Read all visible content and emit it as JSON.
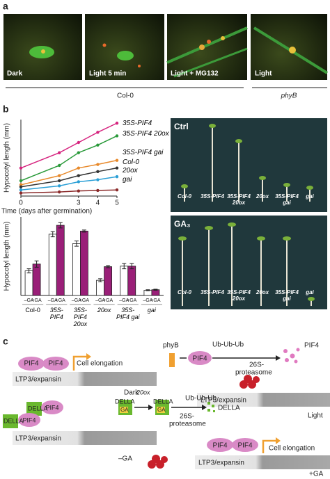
{
  "panel_a": {
    "label": "a",
    "images": [
      "Dark",
      "Light 5 min",
      "Light + MG132",
      "Light"
    ],
    "groups": [
      "Col-0",
      "phyB"
    ]
  },
  "panel_b": {
    "label": "b",
    "photos": [
      {
        "condition": "Ctrl",
        "genotypes": [
          "Col-0",
          "35S-PIF4",
          "35S-PIF4 20ox",
          "20ox",
          "35S-PIF4 gai",
          "gai"
        ]
      },
      {
        "condition": "GA₃",
        "genotypes": [
          "Col-0",
          "35S-PIF4",
          "35S-PIF4 20ox",
          "20ox",
          "35S-PIF4 gai",
          "gai"
        ]
      }
    ]
  },
  "chart_data": [
    {
      "type": "line",
      "xlabel": "Time (days after germination)",
      "ylabel": "Hypocotyl length (mm)",
      "x": [
        0,
        2,
        3,
        4,
        5
      ],
      "xlim": [
        0,
        5
      ],
      "xticks": [
        0,
        3,
        4,
        5
      ],
      "ylim": [
        0,
        15
      ],
      "series": [
        {
          "name": "35S-PIF4",
          "color": "#d6247f",
          "values": [
            5.5,
            8.5,
            10.5,
            12.5,
            14.3
          ]
        },
        {
          "name": "35S-PIF4 20ox",
          "color": "#2a9a3a",
          "values": [
            3,
            6,
            8.5,
            10,
            11.8
          ]
        },
        {
          "name": "35S-PIF4 gai",
          "color": "#e8892a",
          "values": [
            2.2,
            4,
            5.5,
            6.2,
            7
          ]
        },
        {
          "name": "Col-0",
          "color": "#333333",
          "values": [
            1.8,
            3,
            4,
            4.8,
            5.5
          ]
        },
        {
          "name": "20ox",
          "color": "#2a9fd6",
          "values": [
            1.2,
            2,
            2.8,
            3.2,
            3.8
          ]
        },
        {
          "name": "gai",
          "color": "#8b2a2a",
          "values": [
            0.6,
            0.8,
            1,
            1.1,
            1.2
          ]
        }
      ]
    },
    {
      "type": "bar",
      "ylabel": "Hypocotyl length (mm)",
      "categories": [
        "Col-0",
        "35S-PIF4",
        "35S-PIF4 20ox",
        "20ox",
        "35S-PIF4 gai",
        "gai"
      ],
      "ylim": [
        0,
        15
      ],
      "series": [
        {
          "name": "–GA",
          "color": "#ffffff",
          "values": [
            4.7,
            11.7,
            9.9,
            2.9,
            5.6,
            1
          ],
          "errors": [
            0.4,
            0.5,
            0.5,
            0.3,
            0.5,
            0.1
          ]
        },
        {
          "name": "+GA",
          "color": "#9a1f78",
          "values": [
            6,
            13.4,
            12.3,
            5.5,
            5.6,
            1.1
          ],
          "errors": [
            0.6,
            0.5,
            0.2,
            0.2,
            0.5,
            0.1
          ]
        }
      ]
    }
  ],
  "panel_c": {
    "label": "c",
    "dark": {
      "proteins": [
        "PIF4",
        "PIF4"
      ],
      "output": "Cell elongation",
      "promoter": "LTP3/expansin",
      "condition": "Dark"
    },
    "light": {
      "receptor": "phyB",
      "protein": "PIF4",
      "ubiquitin": "Ub-Ub-Ub",
      "degraded": "PIF4",
      "proteasome": [
        "26S-",
        "proteasome"
      ],
      "promoter": "LTP3/expansin",
      "condition": "Light"
    },
    "minus_ga": {
      "complexes": [
        [
          "DELLA",
          "PIF4"
        ],
        [
          "DELLA",
          "PIF4"
        ]
      ],
      "promoter": "LTP3/expansin",
      "condition": "–GA"
    },
    "plus_ga": {
      "enzyme": "20ox",
      "complex": [
        "DELLA",
        "GA"
      ],
      "complex2": [
        "DELLA",
        "GA"
      ],
      "ubiquitin": "Ub-Ub-Ub",
      "degraded": "DELLA",
      "proteasome": [
        "26S-",
        "proteasome"
      ],
      "proteins": [
        "PIF4",
        "PIF4"
      ],
      "output": "Cell elongation",
      "promoter": "LTP3/expansin",
      "condition": "+GA"
    }
  }
}
